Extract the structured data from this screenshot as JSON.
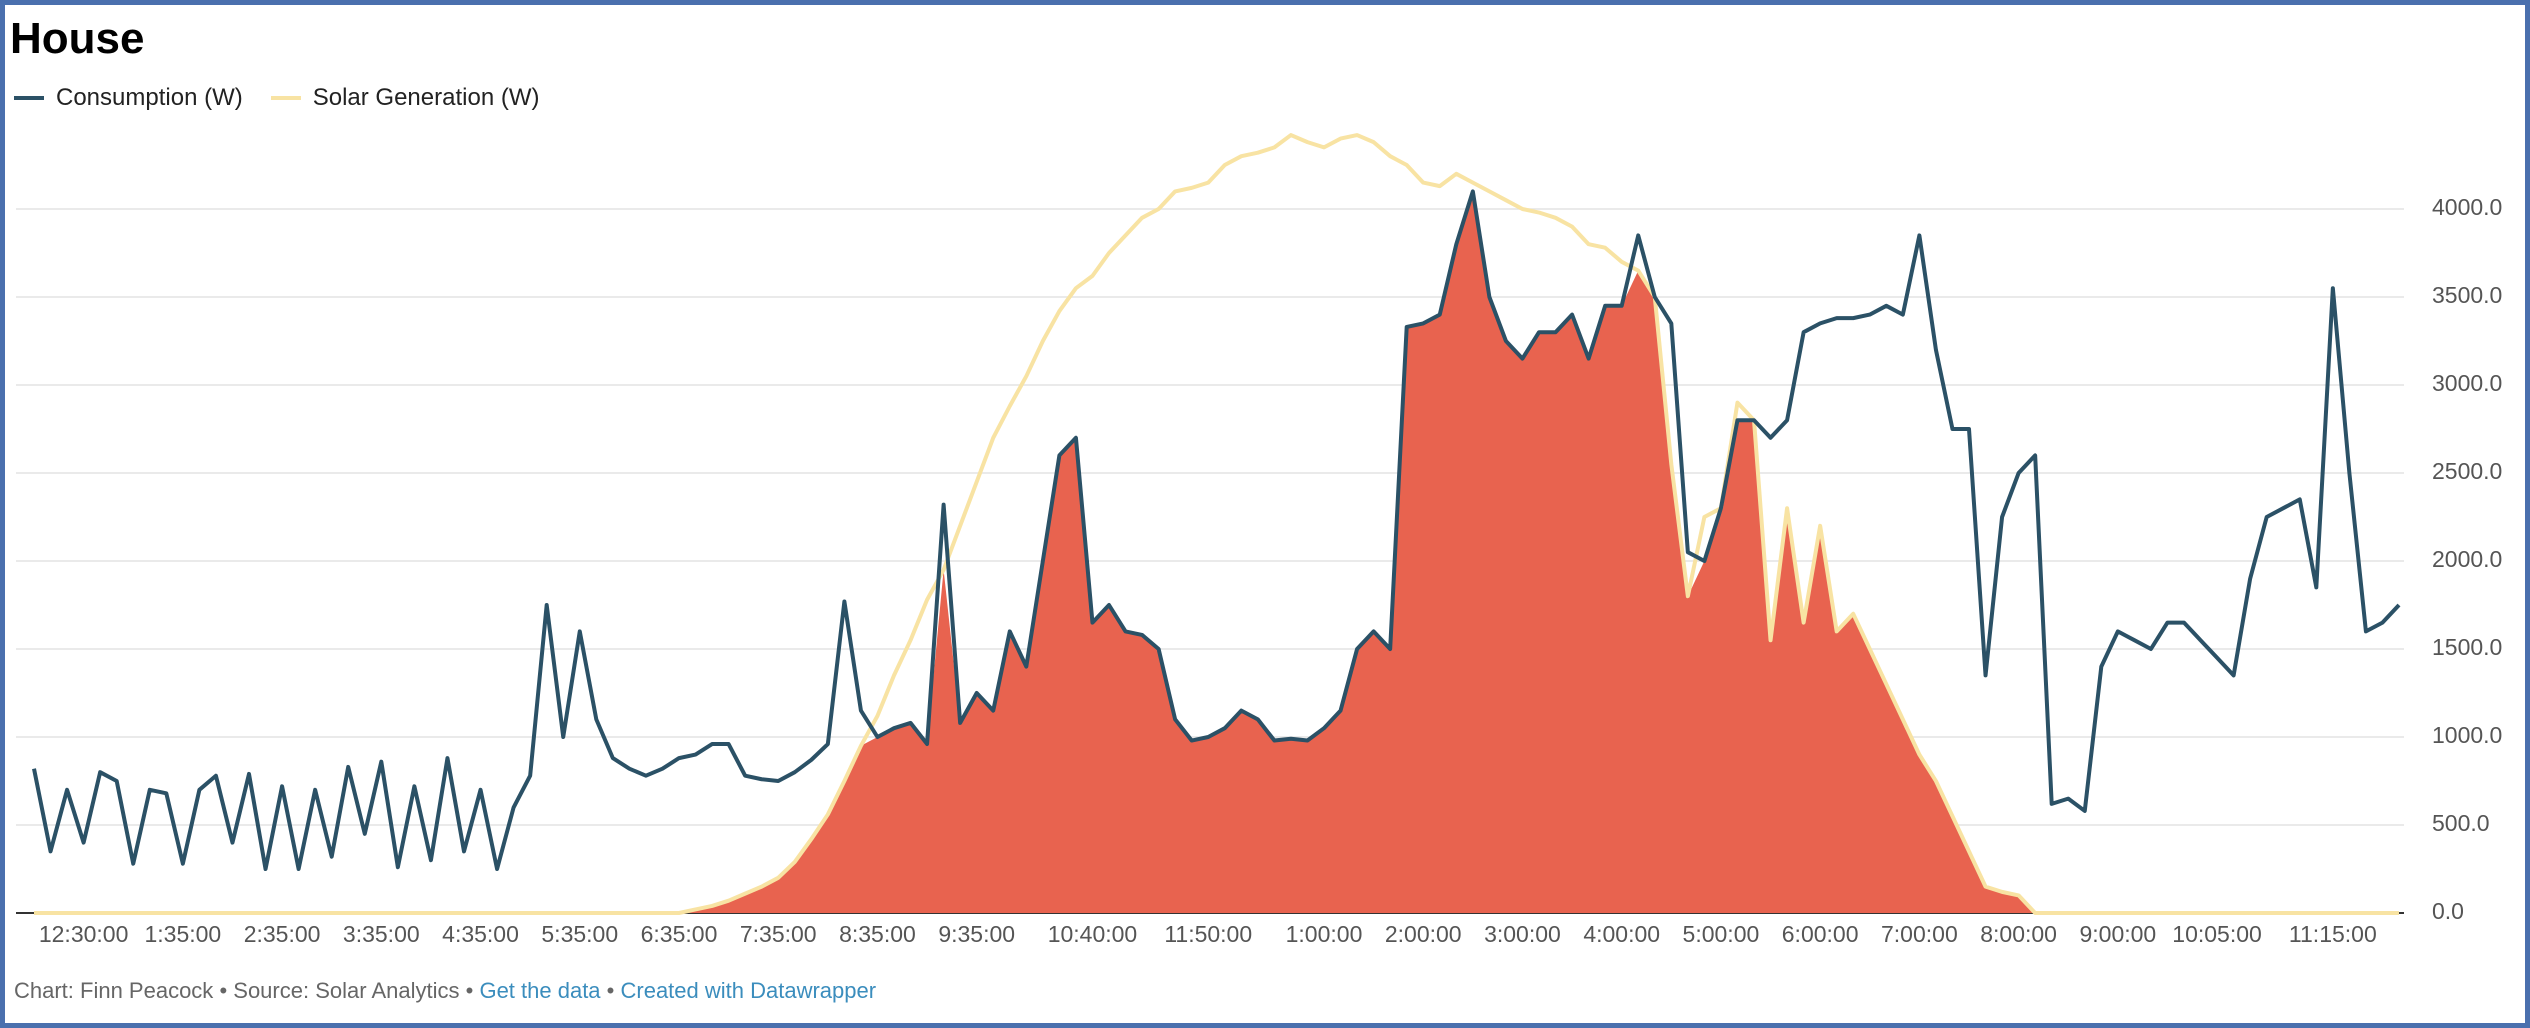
{
  "chart_data": {
    "type": "line",
    "title": "House",
    "categories": [
      null,
      null,
      null,
      "12:30:00",
      null,
      null,
      null,
      null,
      null,
      "1:35:00",
      null,
      null,
      null,
      null,
      null,
      "2:35:00",
      null,
      null,
      null,
      null,
      null,
      "3:35:00",
      null,
      null,
      null,
      null,
      null,
      "4:35:00",
      null,
      null,
      null,
      null,
      null,
      "5:35:00",
      null,
      null,
      null,
      null,
      null,
      "6:35:00",
      null,
      null,
      null,
      null,
      null,
      "7:35:00",
      null,
      null,
      null,
      null,
      null,
      "8:35:00",
      null,
      null,
      null,
      null,
      null,
      "9:35:00",
      null,
      null,
      null,
      null,
      null,
      null,
      "10:40:00",
      null,
      null,
      null,
      null,
      null,
      null,
      "11:50:00",
      null,
      null,
      null,
      null,
      null,
      null,
      "1:00:00",
      null,
      null,
      null,
      null,
      null,
      "2:00:00",
      null,
      null,
      null,
      null,
      null,
      "3:00:00",
      null,
      null,
      null,
      null,
      null,
      "4:00:00",
      null,
      null,
      null,
      null,
      null,
      "5:00:00",
      null,
      null,
      null,
      null,
      null,
      "6:00:00",
      null,
      null,
      null,
      null,
      null,
      "7:00:00",
      null,
      null,
      null,
      null,
      null,
      "8:00:00",
      null,
      null,
      null,
      null,
      null,
      "9:00:00",
      null,
      null,
      null,
      null,
      null,
      "10:05:00",
      null,
      null,
      null,
      null,
      null,
      null,
      "11:15:00",
      null,
      null,
      null,
      null
    ],
    "series": [
      {
        "name": "Consumption (W)",
        "color": "#2b5166",
        "values": [
          820,
          350,
          700,
          400,
          800,
          750,
          280,
          700,
          680,
          280,
          700,
          780,
          400,
          790,
          250,
          720,
          250,
          700,
          320,
          830,
          450,
          860,
          260,
          720,
          300,
          880,
          350,
          700,
          250,
          600,
          780,
          1750,
          1000,
          1600,
          1100,
          880,
          820,
          780,
          820,
          880,
          900,
          960,
          960,
          780,
          760,
          750,
          800,
          870,
          960,
          1770,
          1150,
          1000,
          1050,
          1080,
          960,
          2320,
          1080,
          1250,
          1150,
          1600,
          1400,
          2000,
          2600,
          2700,
          1650,
          1750,
          1600,
          1580,
          1500,
          1100,
          980,
          1000,
          1050,
          1150,
          1100,
          980,
          990,
          980,
          1050,
          1150,
          1500,
          1600,
          1500,
          3330,
          3350,
          3400,
          3800,
          4100,
          3500,
          3250,
          3150,
          3300,
          3300,
          3400,
          3150,
          3450,
          3450,
          3850,
          3500,
          3350,
          2050,
          2000,
          2300,
          2800,
          2800,
          2700,
          2800,
          3300,
          3350,
          3380,
          3380,
          3400,
          3450,
          3400,
          3850,
          3200,
          2750,
          2750,
          1350,
          2250,
          2500,
          2600,
          620,
          650,
          580,
          1400,
          1600,
          1550,
          1500,
          1650,
          1650,
          1550,
          1450,
          1350,
          1900,
          2250,
          2300,
          2350,
          1850,
          3550,
          2500,
          1600,
          1650,
          1750
        ]
      },
      {
        "name": "Solar Generation (W)",
        "color": "#f8e3a3",
        "values": [
          0,
          0,
          0,
          0,
          0,
          0,
          0,
          0,
          0,
          0,
          0,
          0,
          0,
          0,
          0,
          0,
          0,
          0,
          0,
          0,
          0,
          0,
          0,
          0,
          0,
          0,
          0,
          0,
          0,
          0,
          0,
          0,
          0,
          0,
          0,
          0,
          0,
          0,
          0,
          0,
          20,
          40,
          70,
          110,
          150,
          200,
          290,
          420,
          560,
          750,
          950,
          1120,
          1350,
          1550,
          1780,
          1950,
          2200,
          2450,
          2700,
          2880,
          3050,
          3250,
          3420,
          3550,
          3620,
          3750,
          3850,
          3950,
          4000,
          4100,
          4120,
          4150,
          4250,
          4300,
          4320,
          4350,
          4420,
          4380,
          4350,
          4400,
          4420,
          4380,
          4300,
          4250,
          4150,
          4130,
          4200,
          4150,
          4100,
          4050,
          4000,
          3980,
          3950,
          3900,
          3800,
          3780,
          3700,
          3650,
          3500,
          2550,
          1800,
          2250,
          2300,
          2900,
          2800,
          1550,
          2300,
          1650,
          2200,
          1600,
          1700,
          1500,
          1300,
          1100,
          900,
          750,
          550,
          350,
          150,
          120,
          100,
          0,
          0,
          0,
          0,
          0,
          0,
          0,
          0,
          0,
          0,
          0,
          0,
          0,
          0,
          0,
          0,
          0,
          0,
          0,
          0,
          0,
          0,
          0
        ]
      }
    ],
    "overlap_color": "#e8634f",
    "ylim": [
      0,
      4500
    ],
    "yticks": [
      {
        "value": 0,
        "label": "0.0"
      },
      {
        "value": 500,
        "label": "500.0"
      },
      {
        "value": 1000,
        "label": "1000.0"
      },
      {
        "value": 1500,
        "label": "1500.0"
      },
      {
        "value": 2000,
        "label": "2000.0"
      },
      {
        "value": 2500,
        "label": "2500.0"
      },
      {
        "value": 3000,
        "label": "3000.0"
      },
      {
        "value": 3500,
        "label": "3500.0"
      },
      {
        "value": 4000,
        "label": "4000.0"
      }
    ],
    "grid": true,
    "legend": "top-left",
    "footer": {
      "byline": "Chart: Finn Peacock",
      "source": "Source: Solar Analytics",
      "separator": "•",
      "links": [
        "Get the data",
        "Created with Datawrapper"
      ]
    }
  }
}
